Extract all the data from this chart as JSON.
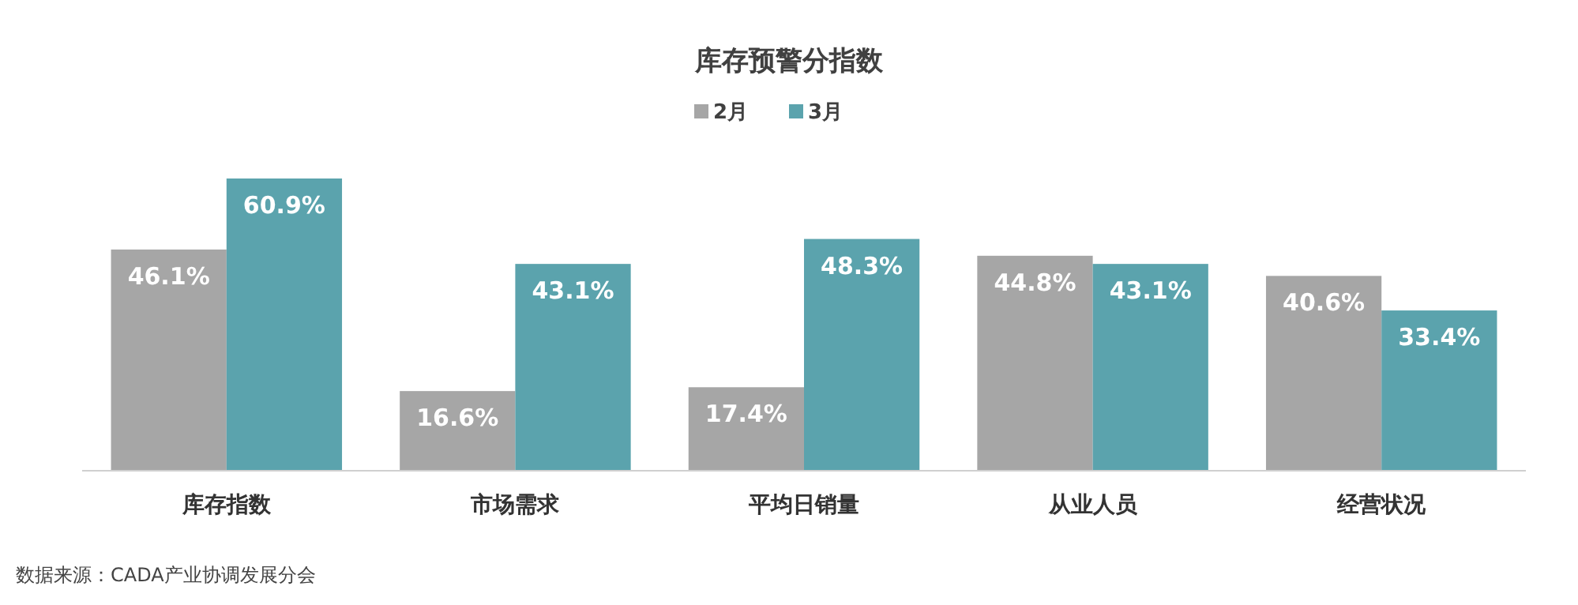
{
  "chart_data": {
    "type": "bar",
    "title": "库存预警分指数",
    "categories": [
      "库存指数",
      "市场需求",
      "平均日销量",
      "从业人员",
      "经营状况"
    ],
    "series": [
      {
        "name": "2月",
        "color": "#a6a6a6",
        "values": [
          46.1,
          16.6,
          17.4,
          44.8,
          40.6
        ],
        "value_labels": [
          "46.1%",
          "16.6%",
          "17.4%",
          "44.8%",
          "40.6%"
        ]
      },
      {
        "name": "3月",
        "color": "#5ba3ad",
        "values": [
          60.9,
          43.1,
          48.3,
          43.1,
          33.4
        ],
        "value_labels": [
          "60.9%",
          "43.1%",
          "48.3%",
          "43.1%",
          "33.4%"
        ]
      }
    ],
    "legend": "top",
    "annotations": [
      "数据来源：CADA产业协调发展分会"
    ]
  }
}
